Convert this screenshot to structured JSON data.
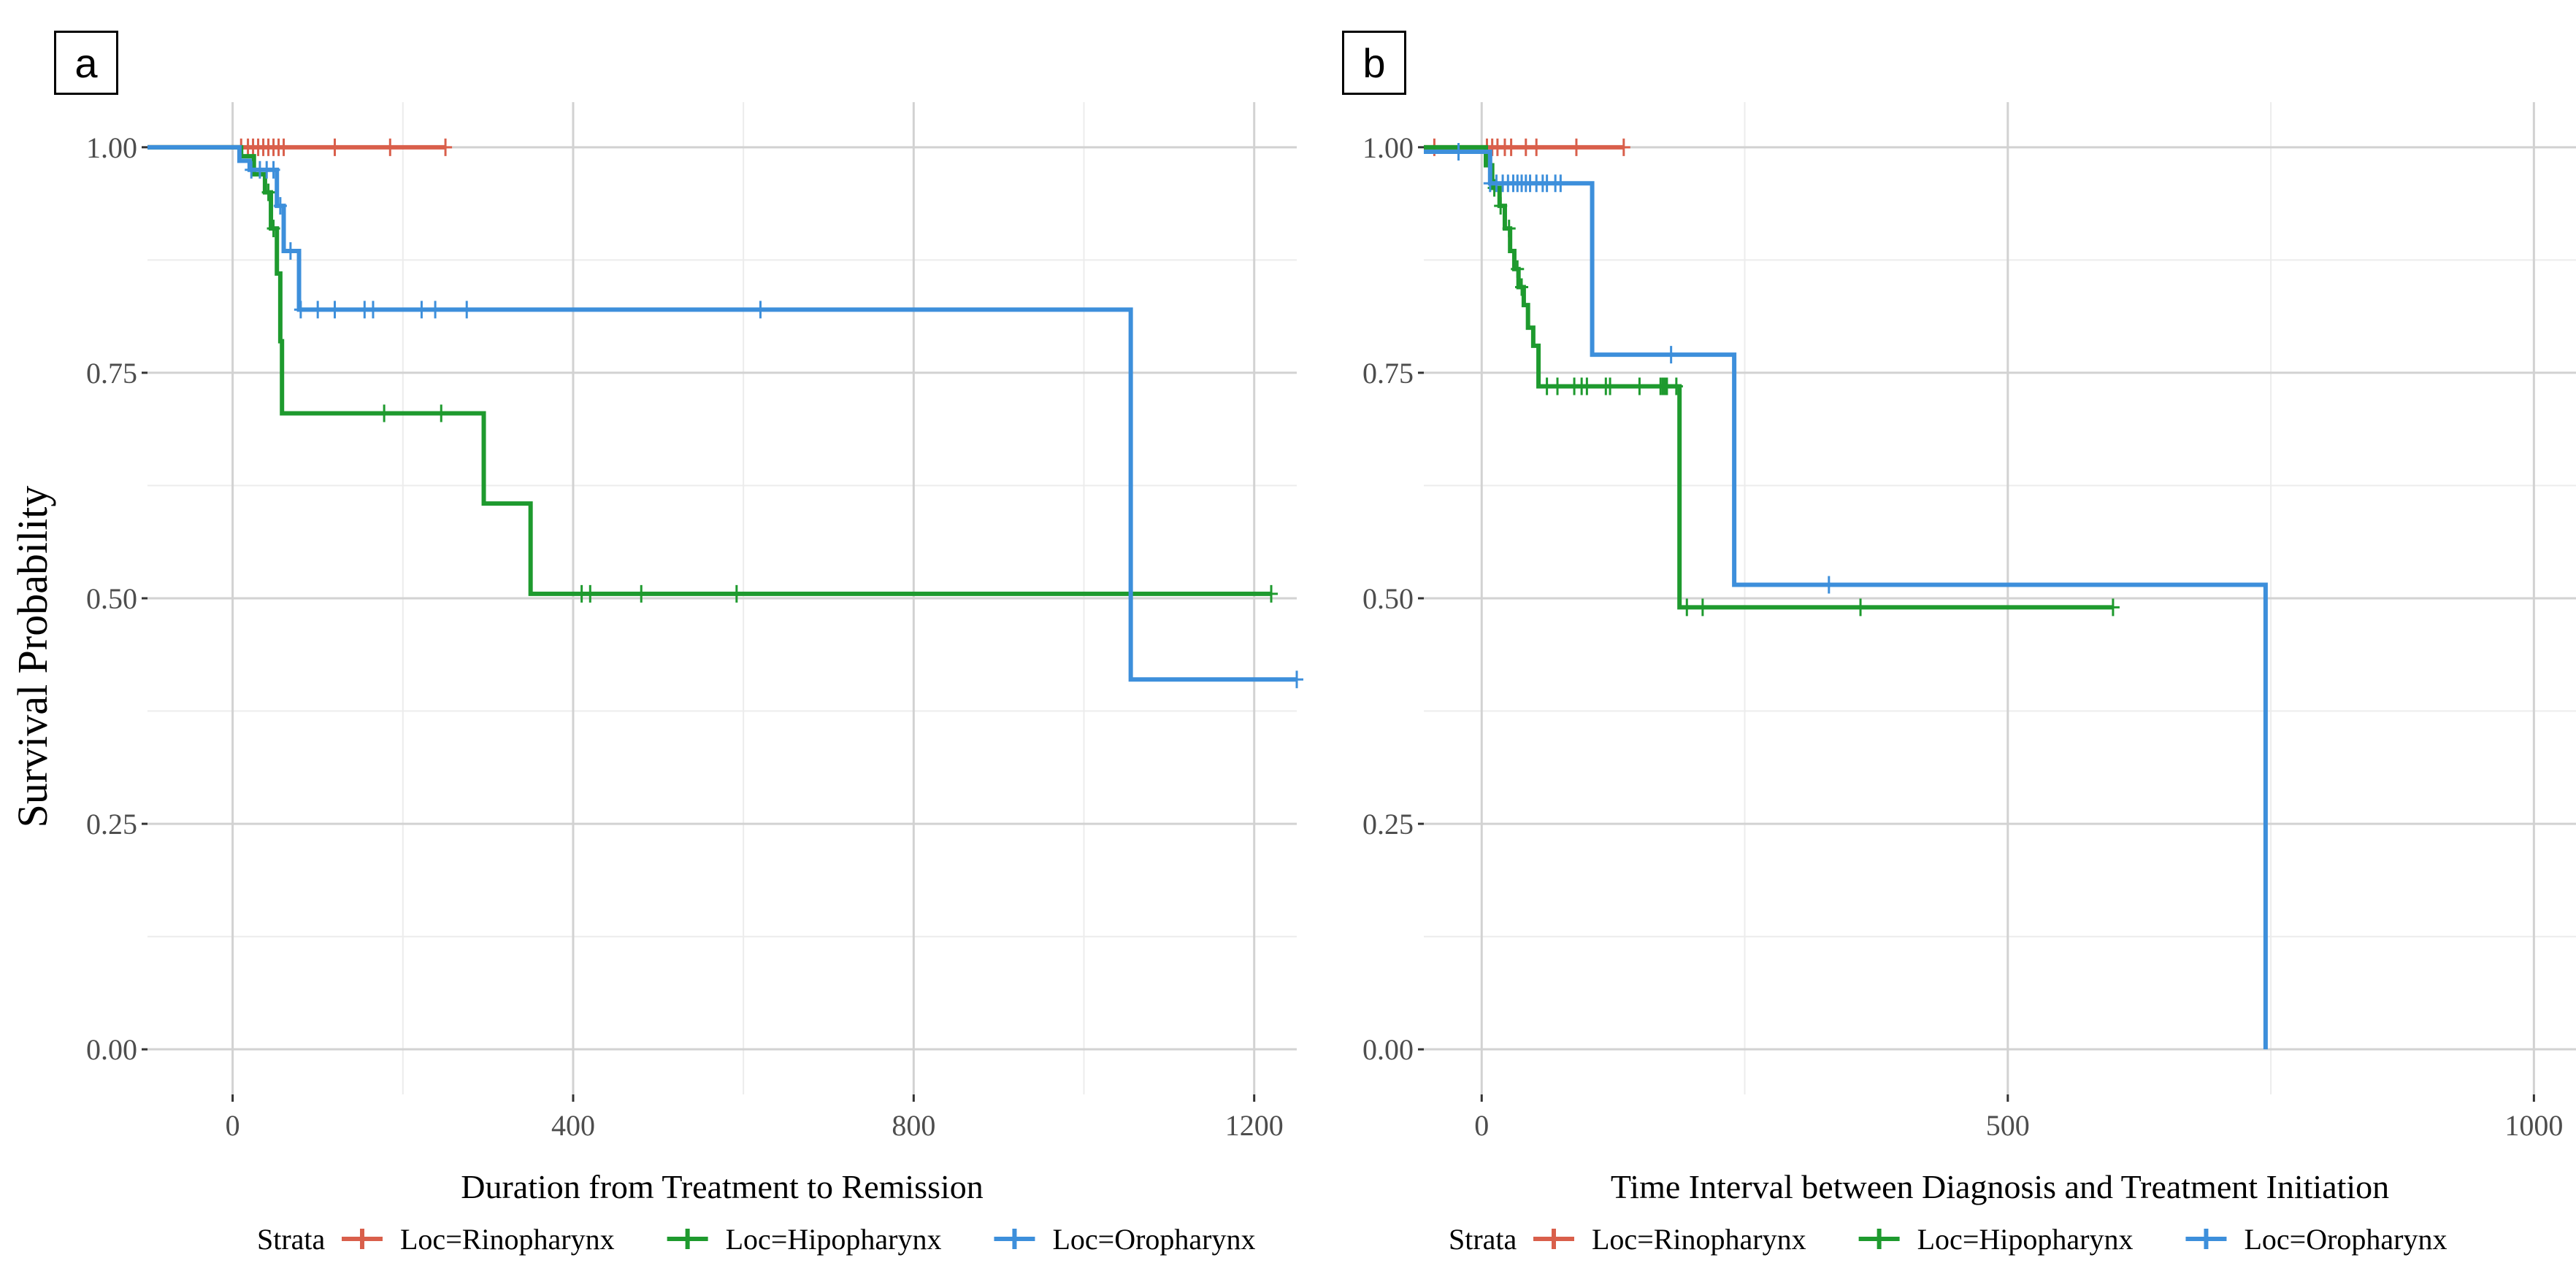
{
  "figure": {
    "y_label": "Survival Probability",
    "legend_title": "Strata",
    "colors": {
      "Loc=Rinopharynx": "#d95f4b",
      "Loc=Hipopharynx": "#1e9a2e",
      "Loc=Oropharynx": "#3d8fdb",
      "grid_major": "#d2d2d2",
      "grid_minor": "#ececec"
    }
  },
  "chart_data": [
    {
      "panel": "a",
      "type": "line",
      "subtype": "kaplan-meier step survival curve",
      "title": "",
      "xlabel": "Duration from Treatment to Remission",
      "ylabel": "Survival Probability",
      "xlim": [
        -100,
        1250
      ],
      "ylim": [
        -0.05,
        1.05
      ],
      "x_ticks": [
        0,
        400,
        800,
        1200
      ],
      "x_tick_labels": [
        "0",
        "400",
        "800",
        "1200"
      ],
      "y_ticks": [
        0.0,
        0.25,
        0.5,
        0.75,
        1.0
      ],
      "y_tick_labels": [
        "0.00",
        "0.25",
        "0.50",
        "0.75",
        "1.00"
      ],
      "grid": true,
      "legend_position": "bottom",
      "series": [
        {
          "name": "Loc=Rinopharynx",
          "steps": [
            [
              -100,
              1.0
            ],
            [
              250,
              1.0
            ]
          ],
          "censor_times": [
            10,
            18,
            24,
            30,
            36,
            42,
            48,
            54,
            60,
            120,
            185,
            250
          ]
        },
        {
          "name": "Loc=Hipopharynx",
          "steps": [
            [
              -100,
              1.0
            ],
            [
              10,
              0.99
            ],
            [
              25,
              0.97
            ],
            [
              38,
              0.95
            ],
            [
              45,
              0.91
            ],
            [
              52,
              0.86
            ],
            [
              56,
              0.785
            ],
            [
              58,
              0.705
            ],
            [
              295,
              0.605
            ],
            [
              350,
              0.505
            ],
            [
              1220,
              0.505
            ]
          ],
          "censor_times": [
            42,
            48,
            178,
            245,
            410,
            420,
            480,
            592,
            1220
          ]
        },
        {
          "name": "Loc=Oropharynx",
          "steps": [
            [
              -100,
              1.0
            ],
            [
              8,
              0.985
            ],
            [
              20,
              0.975
            ],
            [
              52,
              0.935
            ],
            [
              60,
              0.885
            ],
            [
              78,
              0.82
            ],
            [
              1055,
              0.41
            ],
            [
              1250,
              0.41
            ]
          ],
          "censor_times": [
            22,
            32,
            40,
            48,
            56,
            68,
            80,
            100,
            120,
            155,
            165,
            222,
            238,
            275,
            620,
            1250
          ]
        }
      ]
    },
    {
      "panel": "b",
      "type": "line",
      "subtype": "kaplan-meier step survival curve",
      "title": "",
      "xlabel": "Time Interval between Diagnosis and Treatment Initiation",
      "ylabel": "",
      "xlim": [
        -55,
        1040
      ],
      "ylim": [
        -0.05,
        1.05
      ],
      "x_ticks": [
        0,
        500,
        1000
      ],
      "x_tick_labels": [
        "0",
        "500",
        "1000"
      ],
      "y_ticks": [
        0.0,
        0.25,
        0.5,
        0.75,
        1.0
      ],
      "y_tick_labels": [
        "0.00",
        "0.25",
        "0.50",
        "0.75",
        "1.00"
      ],
      "grid": true,
      "legend_position": "bottom",
      "series": [
        {
          "name": "Loc=Rinopharynx",
          "steps": [
            [
              -55,
              1.0
            ],
            [
              135,
              1.0
            ]
          ],
          "censor_times": [
            -45,
            5,
            10,
            15,
            22,
            28,
            42,
            52,
            90,
            135
          ]
        },
        {
          "name": "Loc=Hipopharynx",
          "steps": [
            [
              -55,
              1.0
            ],
            [
              4,
              0.98
            ],
            [
              10,
              0.955
            ],
            [
              17,
              0.935
            ],
            [
              22,
              0.91
            ],
            [
              27,
              0.885
            ],
            [
              31,
              0.865
            ],
            [
              35,
              0.845
            ],
            [
              40,
              0.825
            ],
            [
              44,
              0.8
            ],
            [
              49,
              0.78
            ],
            [
              54,
              0.735
            ],
            [
              188,
              0.49
            ],
            [
              600,
              0.49
            ]
          ],
          "censor_times": [
            12,
            18,
            26,
            34,
            38,
            62,
            72,
            88,
            95,
            100,
            118,
            122,
            150,
            170,
            172,
            174,
            176,
            185,
            195,
            210,
            360,
            600
          ]
        },
        {
          "name": "Loc=Oropharynx",
          "steps": [
            [
              -55,
              0.995
            ],
            [
              8,
              0.96
            ],
            [
              105,
              0.77
            ],
            [
              240,
              0.515
            ],
            [
              745,
              0.0
            ]
          ],
          "censor_times": [
            -22,
            8,
            14,
            20,
            25,
            30,
            34,
            38,
            42,
            46,
            52,
            58,
            62,
            70,
            75,
            180,
            330
          ]
        }
      ]
    }
  ]
}
